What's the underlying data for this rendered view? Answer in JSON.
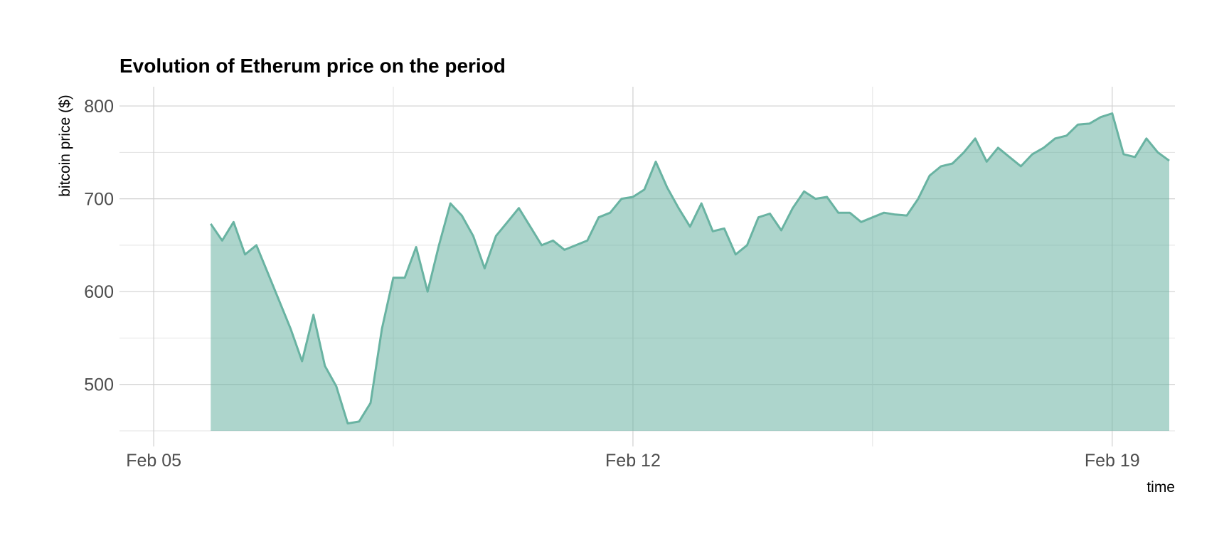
{
  "colors": {
    "fill": "#69b3a2",
    "line": "#69b3a2",
    "grid_major": "#d0d0d0",
    "grid_minor": "#e3e3e3"
  },
  "chart_data": {
    "type": "area",
    "title": "Evolution of Etherum price on the period",
    "xlabel": "time",
    "ylabel": "bitcoin price ($)",
    "x_ticks": [
      {
        "date": "2018-02-05",
        "label": "Feb 05"
      },
      {
        "date": "2018-02-12",
        "label": "Feb 12"
      },
      {
        "date": "2018-02-19",
        "label": "Feb 19"
      }
    ],
    "x_minor_ticks": [
      "2018-02-08T12:00",
      "2018-02-15T12:00"
    ],
    "y_ticks": [
      500,
      600,
      700,
      800
    ],
    "y_minor_ticks": [
      550,
      650,
      750
    ],
    "xlim": [
      "2018-02-04T12:00",
      "2018-02-19T22:00"
    ],
    "ylim": [
      450,
      810
    ],
    "grid": true,
    "legend": "none",
    "series": [
      {
        "x": [
          "2018-02-05T20:00",
          "2018-02-06T00:00",
          "2018-02-06T04:00",
          "2018-02-06T08:00",
          "2018-02-06T12:00",
          "2018-02-06T16:00",
          "2018-02-06T20:00",
          "2018-02-07T00:00",
          "2018-02-07T04:00",
          "2018-02-07T08:00",
          "2018-02-07T12:00",
          "2018-02-07T16:00",
          "2018-02-07T20:00",
          "2018-02-08T00:00",
          "2018-02-08T04:00",
          "2018-02-08T08:00",
          "2018-02-08T12:00",
          "2018-02-08T16:00",
          "2018-02-08T20:00",
          "2018-02-09T00:00",
          "2018-02-09T04:00",
          "2018-02-09T08:00",
          "2018-02-09T12:00",
          "2018-02-09T16:00",
          "2018-02-09T20:00",
          "2018-02-10T00:00",
          "2018-02-10T04:00",
          "2018-02-10T08:00",
          "2018-02-10T12:00",
          "2018-02-10T16:00",
          "2018-02-10T20:00",
          "2018-02-11T00:00",
          "2018-02-11T04:00",
          "2018-02-11T08:00",
          "2018-02-11T12:00",
          "2018-02-11T16:00",
          "2018-02-11T20:00",
          "2018-02-12T00:00",
          "2018-02-12T04:00",
          "2018-02-12T08:00",
          "2018-02-12T12:00",
          "2018-02-12T16:00",
          "2018-02-12T20:00",
          "2018-02-13T00:00",
          "2018-02-13T04:00",
          "2018-02-13T08:00",
          "2018-02-13T12:00",
          "2018-02-13T16:00",
          "2018-02-13T20:00",
          "2018-02-14T00:00",
          "2018-02-14T04:00",
          "2018-02-14T08:00",
          "2018-02-14T12:00",
          "2018-02-14T16:00",
          "2018-02-14T20:00",
          "2018-02-15T00:00",
          "2018-02-15T04:00",
          "2018-02-15T08:00",
          "2018-02-15T12:00",
          "2018-02-15T16:00",
          "2018-02-15T20:00",
          "2018-02-16T00:00",
          "2018-02-16T04:00",
          "2018-02-16T08:00",
          "2018-02-16T12:00",
          "2018-02-16T16:00",
          "2018-02-16T20:00",
          "2018-02-17T00:00",
          "2018-02-17T04:00",
          "2018-02-17T08:00",
          "2018-02-17T12:00",
          "2018-02-17T16:00",
          "2018-02-17T20:00",
          "2018-02-18T00:00",
          "2018-02-18T04:00",
          "2018-02-18T08:00",
          "2018-02-18T12:00",
          "2018-02-18T16:00",
          "2018-02-18T20:00",
          "2018-02-19T00:00",
          "2018-02-19T04:00",
          "2018-02-19T08:00",
          "2018-02-19T12:00",
          "2018-02-19T16:00",
          "2018-02-19T20:00"
        ],
        "y": [
          673,
          655,
          675,
          640,
          650,
          620,
          590,
          560,
          525,
          575,
          520,
          498,
          458,
          460,
          480,
          560,
          615,
          615,
          648,
          600,
          650,
          695,
          682,
          660,
          625,
          660,
          675,
          690,
          670,
          650,
          655,
          645,
          650,
          655,
          680,
          685,
          700,
          702,
          710,
          740,
          712,
          690,
          670,
          695,
          665,
          668,
          640,
          650,
          680,
          684,
          666,
          690,
          708,
          700,
          702,
          685,
          685,
          675,
          680,
          685,
          683,
          682,
          700,
          725,
          735,
          738,
          750,
          765,
          740,
          755,
          745,
          735,
          748,
          755,
          765,
          768,
          780,
          781,
          788,
          792,
          748,
          745,
          765,
          750,
          741
        ]
      }
    ]
  }
}
